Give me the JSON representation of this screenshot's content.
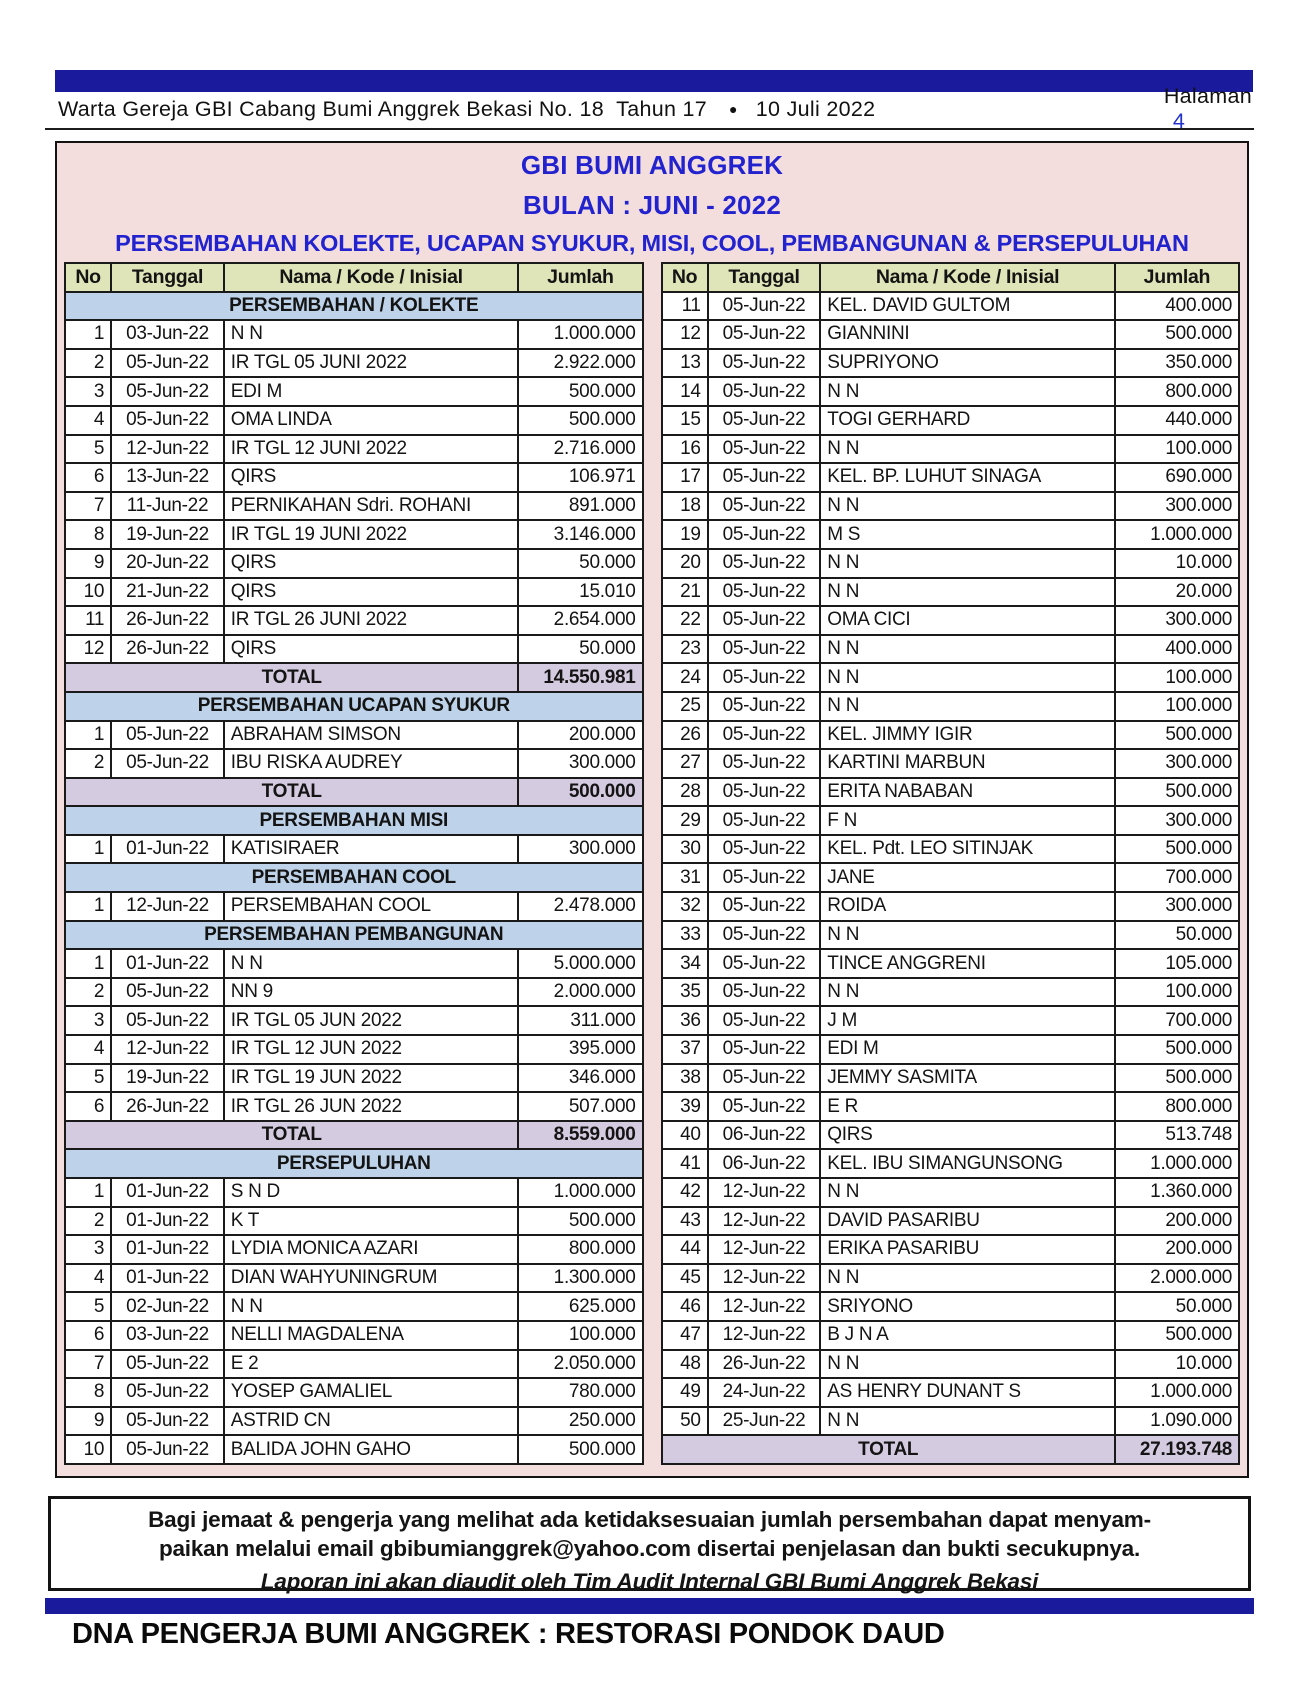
{
  "masthead": {
    "title": "Warta Gereja GBI Cabang Bumi Anggrek Bekasi No. 18  Tahun 17",
    "separator": "●",
    "date": "10 Juli 2022",
    "page_label": "Halaman",
    "page_number": "4"
  },
  "report": {
    "org": "GBI BUMI ANGGREK",
    "period": "BULAN : JUNI - 2022",
    "subtitle": "PERSEMBAHAN KOLEKTE, UCAPAN SYUKUR, MISI, COOL, PEMBANGUNAN & PERSEPULUHAN",
    "columns": [
      "No",
      "Tanggal",
      "Nama / Kode / Inisial",
      "Jumlah"
    ],
    "left_rows": [
      {
        "type": "section",
        "label": "PERSEMBAHAN / KOLEKTE"
      },
      {
        "type": "data",
        "no": "1",
        "date": "03-Jun-22",
        "name": "N N",
        "amount": "1.000.000"
      },
      {
        "type": "data",
        "no": "2",
        "date": "05-Jun-22",
        "name": "IR TGL 05 JUNI 2022",
        "amount": "2.922.000"
      },
      {
        "type": "data",
        "no": "3",
        "date": "05-Jun-22",
        "name": "EDI M",
        "amount": "500.000"
      },
      {
        "type": "data",
        "no": "4",
        "date": "05-Jun-22",
        "name": "OMA LINDA",
        "amount": "500.000"
      },
      {
        "type": "data",
        "no": "5",
        "date": "12-Jun-22",
        "name": "IR TGL 12 JUNI 2022",
        "amount": "2.716.000"
      },
      {
        "type": "data",
        "no": "6",
        "date": "13-Jun-22",
        "name": "QIRS",
        "amount": "106.971"
      },
      {
        "type": "data",
        "no": "7",
        "date": "11-Jun-22",
        "name": "PERNIKAHAN Sdri. ROHANI",
        "amount": "891.000"
      },
      {
        "type": "data",
        "no": "8",
        "date": "19-Jun-22",
        "name": "IR TGL 19 JUNI 2022",
        "amount": "3.146.000"
      },
      {
        "type": "data",
        "no": "9",
        "date": "20-Jun-22",
        "name": "QIRS",
        "amount": "50.000"
      },
      {
        "type": "data",
        "no": "10",
        "date": "21-Jun-22",
        "name": "QIRS",
        "amount": "15.010"
      },
      {
        "type": "data",
        "no": "11",
        "date": "26-Jun-22",
        "name": "IR TGL 26 JUNI 2022",
        "amount": "2.654.000"
      },
      {
        "type": "data",
        "no": "12",
        "date": "26-Jun-22",
        "name": "QIRS",
        "amount": "50.000"
      },
      {
        "type": "total",
        "label": "TOTAL",
        "amount": "14.550.981"
      },
      {
        "type": "section",
        "label": "PERSEMBAHAN UCAPAN SYUKUR"
      },
      {
        "type": "data",
        "no": "1",
        "date": "05-Jun-22",
        "name": "ABRAHAM SIMSON",
        "amount": "200.000"
      },
      {
        "type": "data",
        "no": "2",
        "date": "05-Jun-22",
        "name": "IBU RISKA AUDREY",
        "amount": "300.000"
      },
      {
        "type": "total",
        "label": "TOTAL",
        "amount": "500.000"
      },
      {
        "type": "section",
        "label": "PERSEMBAHAN MISI"
      },
      {
        "type": "data",
        "no": "1",
        "date": "01-Jun-22",
        "name": "KATISIRAER",
        "amount": "300.000"
      },
      {
        "type": "section",
        "label": "PERSEMBAHAN COOL"
      },
      {
        "type": "data",
        "no": "1",
        "date": "12-Jun-22",
        "name": "PERSEMBAHAN COOL",
        "amount": "2.478.000"
      },
      {
        "type": "section",
        "label": "PERSEMBAHAN PEMBANGUNAN"
      },
      {
        "type": "data",
        "no": "1",
        "date": "01-Jun-22",
        "name": "N N",
        "amount": "5.000.000"
      },
      {
        "type": "data",
        "no": "2",
        "date": "05-Jun-22",
        "name": "NN 9",
        "amount": "2.000.000"
      },
      {
        "type": "data",
        "no": "3",
        "date": "05-Jun-22",
        "name": "IR TGL 05 JUN 2022",
        "amount": "311.000"
      },
      {
        "type": "data",
        "no": "4",
        "date": "12-Jun-22",
        "name": "IR TGL 12 JUN 2022",
        "amount": "395.000"
      },
      {
        "type": "data",
        "no": "5",
        "date": "19-Jun-22",
        "name": "IR TGL 19 JUN 2022",
        "amount": "346.000"
      },
      {
        "type": "data",
        "no": "6",
        "date": "26-Jun-22",
        "name": "IR TGL 26 JUN 2022",
        "amount": "507.000"
      },
      {
        "type": "total",
        "label": "TOTAL",
        "amount": "8.559.000"
      },
      {
        "type": "section",
        "label": "PERSEPULUHAN"
      },
      {
        "type": "data",
        "no": "1",
        "date": "01-Jun-22",
        "name": "S N D",
        "amount": "1.000.000"
      },
      {
        "type": "data",
        "no": "2",
        "date": "01-Jun-22",
        "name": "K T",
        "amount": "500.000"
      },
      {
        "type": "data",
        "no": "3",
        "date": "01-Jun-22",
        "name": "LYDIA MONICA AZARI",
        "amount": "800.000"
      },
      {
        "type": "data",
        "no": "4",
        "date": "01-Jun-22",
        "name": "DIAN WAHYUNINGRUM",
        "amount": "1.300.000"
      },
      {
        "type": "data",
        "no": "5",
        "date": "02-Jun-22",
        "name": "N N",
        "amount": "625.000"
      },
      {
        "type": "data",
        "no": "6",
        "date": "03-Jun-22",
        "name": "NELLI MAGDALENA",
        "amount": "100.000"
      },
      {
        "type": "data",
        "no": "7",
        "date": "05-Jun-22",
        "name": "E 2",
        "amount": "2.050.000"
      },
      {
        "type": "data",
        "no": "8",
        "date": "05-Jun-22",
        "name": "YOSEP GAMALIEL",
        "amount": "780.000"
      },
      {
        "type": "data",
        "no": "9",
        "date": "05-Jun-22",
        "name": "ASTRID CN",
        "amount": "250.000"
      },
      {
        "type": "data",
        "no": "10",
        "date": "05-Jun-22",
        "name": "BALIDA JOHN GAHO",
        "amount": "500.000"
      }
    ],
    "right_rows": [
      {
        "type": "data",
        "no": "11",
        "date": "05-Jun-22",
        "name": "KEL. DAVID GULTOM",
        "amount": "400.000"
      },
      {
        "type": "data",
        "no": "12",
        "date": "05-Jun-22",
        "name": "GIANNINI",
        "amount": "500.000"
      },
      {
        "type": "data",
        "no": "13",
        "date": "05-Jun-22",
        "name": "SUPRIYONO",
        "amount": "350.000"
      },
      {
        "type": "data",
        "no": "14",
        "date": "05-Jun-22",
        "name": "N N",
        "amount": "800.000"
      },
      {
        "type": "data",
        "no": "15",
        "date": "05-Jun-22",
        "name": "TOGI GERHARD",
        "amount": "440.000"
      },
      {
        "type": "data",
        "no": "16",
        "date": "05-Jun-22",
        "name": "N N",
        "amount": "100.000"
      },
      {
        "type": "data",
        "no": "17",
        "date": "05-Jun-22",
        "name": "KEL. BP. LUHUT SINAGA",
        "amount": "690.000"
      },
      {
        "type": "data",
        "no": "18",
        "date": "05-Jun-22",
        "name": "N N",
        "amount": "300.000"
      },
      {
        "type": "data",
        "no": "19",
        "date": "05-Jun-22",
        "name": "M S",
        "amount": "1.000.000"
      },
      {
        "type": "data",
        "no": "20",
        "date": "05-Jun-22",
        "name": "N N",
        "amount": "10.000"
      },
      {
        "type": "data",
        "no": "21",
        "date": "05-Jun-22",
        "name": "N N",
        "amount": "20.000"
      },
      {
        "type": "data",
        "no": "22",
        "date": "05-Jun-22",
        "name": "OMA CICI",
        "amount": "300.000"
      },
      {
        "type": "data",
        "no": "23",
        "date": "05-Jun-22",
        "name": "N N",
        "amount": "400.000"
      },
      {
        "type": "data",
        "no": "24",
        "date": "05-Jun-22",
        "name": "N N",
        "amount": "100.000"
      },
      {
        "type": "data",
        "no": "25",
        "date": "05-Jun-22",
        "name": "N N",
        "amount": "100.000"
      },
      {
        "type": "data",
        "no": "26",
        "date": "05-Jun-22",
        "name": "KEL. JIMMY IGIR",
        "amount": "500.000"
      },
      {
        "type": "data",
        "no": "27",
        "date": "05-Jun-22",
        "name": "KARTINI MARBUN",
        "amount": "300.000"
      },
      {
        "type": "data",
        "no": "28",
        "date": "05-Jun-22",
        "name": "ERITA NABABAN",
        "amount": "500.000"
      },
      {
        "type": "data",
        "no": "29",
        "date": "05-Jun-22",
        "name": "F N",
        "amount": "300.000"
      },
      {
        "type": "data",
        "no": "30",
        "date": "05-Jun-22",
        "name": "KEL. Pdt. LEO SITINJAK",
        "amount": "500.000"
      },
      {
        "type": "data",
        "no": "31",
        "date": "05-Jun-22",
        "name": "JANE",
        "amount": "700.000"
      },
      {
        "type": "data",
        "no": "32",
        "date": "05-Jun-22",
        "name": "ROIDA",
        "amount": "300.000"
      },
      {
        "type": "data",
        "no": "33",
        "date": "05-Jun-22",
        "name": "N N",
        "amount": "50.000"
      },
      {
        "type": "data",
        "no": "34",
        "date": "05-Jun-22",
        "name": "TINCE ANGGRENI",
        "amount": "105.000"
      },
      {
        "type": "data",
        "no": "35",
        "date": "05-Jun-22",
        "name": "N N",
        "amount": "100.000"
      },
      {
        "type": "data",
        "no": "36",
        "date": "05-Jun-22",
        "name": "J M",
        "amount": "700.000"
      },
      {
        "type": "data",
        "no": "37",
        "date": "05-Jun-22",
        "name": "EDI M",
        "amount": "500.000"
      },
      {
        "type": "data",
        "no": "38",
        "date": "05-Jun-22",
        "name": "JEMMY SASMITA",
        "amount": "500.000"
      },
      {
        "type": "data",
        "no": "39",
        "date": "05-Jun-22",
        "name": "E R",
        "amount": "800.000"
      },
      {
        "type": "data",
        "no": "40",
        "date": "06-Jun-22",
        "name": "QIRS",
        "amount": "513.748"
      },
      {
        "type": "data",
        "no": "41",
        "date": "06-Jun-22",
        "name": "KEL. IBU SIMANGUNSONG",
        "amount": "1.000.000"
      },
      {
        "type": "data",
        "no": "42",
        "date": "12-Jun-22",
        "name": "N N",
        "amount": "1.360.000"
      },
      {
        "type": "data",
        "no": "43",
        "date": "12-Jun-22",
        "name": "DAVID PASARIBU",
        "amount": "200.000"
      },
      {
        "type": "data",
        "no": "44",
        "date": "12-Jun-22",
        "name": "ERIKA PASARIBU",
        "amount": "200.000"
      },
      {
        "type": "data",
        "no": "45",
        "date": "12-Jun-22",
        "name": "N N",
        "amount": "2.000.000"
      },
      {
        "type": "data",
        "no": "46",
        "date": "12-Jun-22",
        "name": "SRIYONO",
        "amount": "50.000"
      },
      {
        "type": "data",
        "no": "47",
        "date": "12-Jun-22",
        "name": "B J N A",
        "amount": "500.000"
      },
      {
        "type": "data",
        "no": "48",
        "date": "26-Jun-22",
        "name": "N N",
        "amount": "10.000"
      },
      {
        "type": "data",
        "no": "49",
        "date": "24-Jun-22",
        "name": "AS HENRY DUNANT S",
        "amount": "1.000.000"
      },
      {
        "type": "data",
        "no": "50",
        "date": "25-Jun-22",
        "name": "N N",
        "amount": "1.090.000"
      },
      {
        "type": "total",
        "label": "TOTAL",
        "amount": "27.193.748"
      }
    ]
  },
  "notice": {
    "line1": "Bagi jemaat & pengerja yang melihat ada ketidaksesuaian jumlah persembahan dapat menyam-",
    "line2": "paikan melalui email gbibumianggrek@yahoo.com disertai penjelasan dan bukti secukupnya.",
    "line3": "Laporan ini akan diaudit oleh Tim Audit Internal GBI Bumi Anggrek Bekasi"
  },
  "footer": {
    "slogan": "DNA PENGERJA BUMI ANGGREK : RESTORASI PONDOK DAUD"
  },
  "colors": {
    "navy_bar": "#1a1a9c",
    "title_blue": "#2222cf",
    "panel_pink": "#f3dedd",
    "column_header_olive": "#dfe5b8",
    "section_header_blue": "#bed3e9",
    "total_row_lavender": "#d5cbe0",
    "page_number_blue": "#2233cf"
  }
}
